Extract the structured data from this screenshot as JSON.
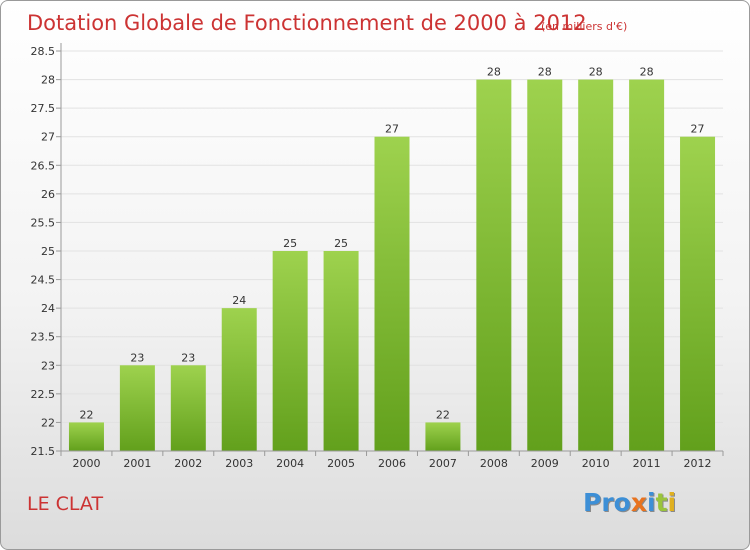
{
  "title": "Dotation Globale de Fonctionnement de 2000 à 2012",
  "subtitle": "(en milliers d'€)",
  "commune": "LE CLAT",
  "logo": {
    "letters": [
      "P",
      "r",
      "o",
      "x",
      "i",
      "t",
      "i"
    ],
    "colors": [
      "#3d8fd6",
      "#3d8fd6",
      "#3d8fd6",
      "#e8731f",
      "#3d8fd6",
      "#9ac43c",
      "#e0b020"
    ]
  },
  "colors": {
    "bar_light": "#9ed24e",
    "bar_dark": "#62a01c",
    "axis": "#9a9a9a",
    "grid": "#e2e2e2",
    "title": "#cc3333"
  },
  "chart_data": {
    "type": "bar",
    "categories": [
      "2000",
      "2001",
      "2002",
      "2003",
      "2004",
      "2005",
      "2006",
      "2007",
      "2008",
      "2009",
      "2010",
      "2011",
      "2012"
    ],
    "values": [
      22,
      23,
      23,
      24,
      25,
      25,
      27,
      22,
      28,
      28,
      28,
      28,
      27
    ],
    "data_labels": [
      "22",
      "23",
      "23",
      "24",
      "25",
      "25",
      "27",
      "22",
      "28",
      "28",
      "28",
      "28",
      "27"
    ],
    "yticks": [
      "21.5",
      "22",
      "22.5",
      "23",
      "23.5",
      "24",
      "24.5",
      "25",
      "25.5",
      "26",
      "26.5",
      "27",
      "27.5",
      "28",
      "28.5"
    ],
    "ylim": [
      21.5,
      28.5
    ],
    "grid": true,
    "legend": "none"
  }
}
